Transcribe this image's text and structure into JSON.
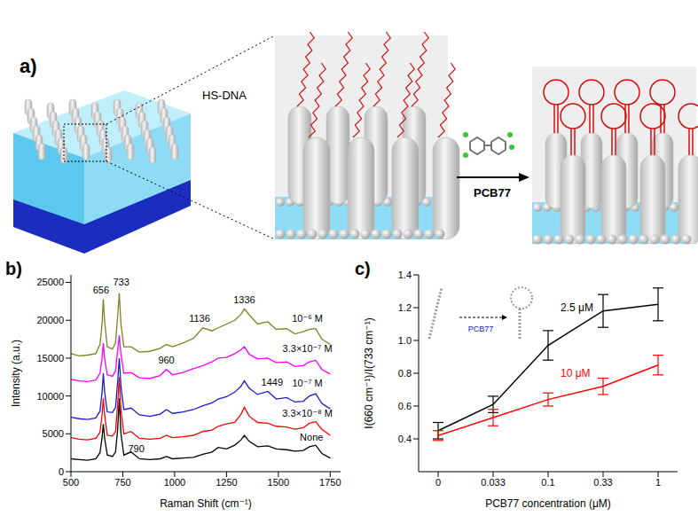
{
  "diagram": {
    "panel_label": "a)",
    "probe_label": "HS-DNA",
    "analyte_label": "PCB77"
  },
  "chart_data": [
    {
      "panel_label": "b)",
      "type": "line",
      "x_label": "Raman Shift (cm⁻¹)",
      "y_label": "Intensity (a.u.)",
      "x": [
        500,
        540,
        580,
        620,
        640,
        650,
        656,
        662,
        675,
        700,
        715,
        725,
        733,
        741,
        755,
        790,
        830,
        880,
        930,
        960,
        990,
        1040,
        1090,
        1136,
        1180,
        1210,
        1250,
        1290,
        1320,
        1336,
        1360,
        1400,
        1449,
        1490,
        1540,
        1580,
        1620,
        1650,
        1680,
        1710,
        1750
      ],
      "xlim": [
        500,
        1800
      ],
      "xticks": [
        500,
        750,
        1000,
        1250,
        1500,
        1750
      ],
      "ylim": [
        0,
        26000
      ],
      "yticks": [
        0,
        5000,
        10000,
        15000,
        20000,
        25000
      ],
      "series": [
        {
          "name": "None",
          "color": "#000000",
          "marker": "none",
          "label_at": [
            1660,
            4600
          ],
          "values": [
            1700,
            1600,
            1500,
            1700,
            2500,
            4500,
            6300,
            4500,
            2200,
            2000,
            2600,
            5500,
            9700,
            5000,
            2200,
            2600,
            1700,
            1600,
            1700,
            2000,
            1700,
            1800,
            1900,
            2300,
            2600,
            3200,
            3000,
            3500,
            4200,
            4800,
            4000,
            3300,
            3400,
            3000,
            2900,
            2700,
            2800,
            3300,
            3500,
            2400,
            1800
          ]
        },
        {
          "name": "3.3×10⁻⁸ M",
          "color": "#ff0000",
          "marker": "none",
          "label_at": [
            1640,
            7700
          ],
          "values": [
            4500,
            4300,
            4200,
            4400,
            5200,
            7500,
            9700,
            7600,
            4800,
            4700,
            5300,
            8800,
            12500,
            8200,
            5000,
            5300,
            4400,
            4300,
            4400,
            4800,
            4500,
            4600,
            4800,
            5300,
            5500,
            6000,
            6300,
            6500,
            7600,
            8500,
            7300,
            6500,
            6400,
            6000,
            5900,
            5600,
            5800,
            6400,
            6600,
            5600,
            4800
          ]
        },
        {
          "name": "10⁻⁷ M",
          "color": "#1a1ad0",
          "marker": "none",
          "label_at": [
            1640,
            11700
          ],
          "values": [
            7200,
            7000,
            6900,
            7100,
            8000,
            10500,
            13000,
            10600,
            7900,
            7800,
            8500,
            11800,
            15000,
            11300,
            8200,
            8400,
            7500,
            7300,
            7600,
            8200,
            7700,
            7900,
            8200,
            8700,
            9100,
            9600,
            9900,
            10500,
            11300,
            12000,
            11000,
            10200,
            10600,
            9600,
            9800,
            9200,
            9300,
            10000,
            10300,
            9000,
            8300
          ]
        },
        {
          "name": "3.3×10⁻⁷ M",
          "color": "#ff00ff",
          "marker": "none",
          "label_at": [
            1640,
            16300
          ],
          "values": [
            12200,
            12000,
            11900,
            12100,
            13000,
            15000,
            17000,
            15000,
            12800,
            12600,
            13300,
            16000,
            18000,
            15500,
            13000,
            13100,
            12400,
            12300,
            12700,
            13500,
            12800,
            13100,
            13600,
            14000,
            14500,
            15000,
            15100,
            15600,
            16100,
            16500,
            15500,
            14900,
            15000,
            14400,
            14500,
            13900,
            14000,
            14500,
            14700,
            13500,
            12900
          ]
        },
        {
          "name": "10⁻⁶ M",
          "color": "#808020",
          "marker": "none",
          "label_at": [
            1640,
            20300
          ],
          "values": [
            15600,
            15300,
            15400,
            15600,
            16800,
            19500,
            22800,
            20000,
            16500,
            16200,
            17000,
            20500,
            23600,
            19500,
            16500,
            16500,
            15800,
            15900,
            16300,
            16800,
            16500,
            17000,
            17600,
            19000,
            18600,
            19000,
            19500,
            20000,
            20800,
            21500,
            20700,
            19500,
            19800,
            18800,
            18900,
            18200,
            18500,
            18800,
            18900,
            17500,
            16800
          ]
        }
      ],
      "annotations": [
        {
          "text": "656",
          "x": 645,
          "y": 24000
        },
        {
          "text": "733",
          "x": 742,
          "y": 25000
        },
        {
          "text": "1336",
          "x": 1336,
          "y": 22700
        },
        {
          "text": "1136",
          "x": 1120,
          "y": 20200
        },
        {
          "text": "960",
          "x": 960,
          "y": 14700
        },
        {
          "text": "1449",
          "x": 1470,
          "y": 11800
        },
        {
          "text": "790",
          "x": 815,
          "y": 3000
        }
      ]
    },
    {
      "panel_label": "c)",
      "type": "line",
      "x_label": "PCB77 concentration (μM)",
      "y_label": "I(660 cm⁻¹)/I(733 cm⁻¹)",
      "categories": [
        "0",
        "0.033",
        "0.1",
        "0.33",
        "1"
      ],
      "ylim": [
        0.2,
        1.4
      ],
      "yticks": [
        0.4,
        0.6,
        0.8,
        {
          "value": 1,
          "label": "1.0"
        },
        1.2,
        1.4
      ],
      "inset_text": "PCB77",
      "series": [
        {
          "name": "2.5 μM",
          "color": "#000000",
          "marker": "none",
          "label_at": [
            "0.1",
            1.2
          ],
          "values": [
            0.45,
            0.61,
            0.97,
            1.18,
            1.22
          ],
          "errors": [
            0.05,
            0.05,
            0.09,
            0.1,
            0.1
          ]
        },
        {
          "name": "10 μM",
          "color": "#ff0000",
          "marker": "none",
          "label_at": [
            "0.1",
            0.8
          ],
          "values": [
            0.42,
            0.53,
            0.64,
            0.72,
            0.85
          ],
          "errors": [
            0.03,
            0.05,
            0.04,
            0.05,
            0.06
          ]
        }
      ]
    }
  ]
}
